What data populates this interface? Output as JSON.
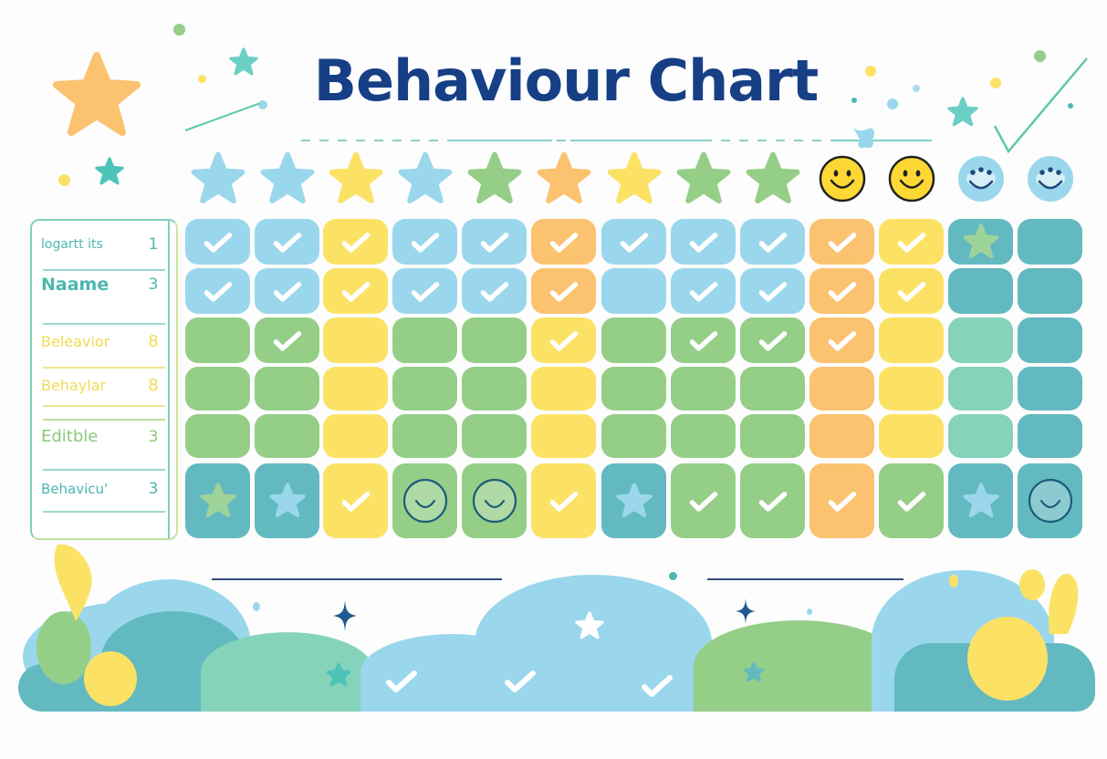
{
  "title": "Behaviour Chart",
  "colors": {
    "title": "#163F86",
    "blue": "#9AD7EC",
    "yellow": "#FBE265",
    "green": "#95CE87",
    "orange": "#FBC26F",
    "teal_dark": "#63B9C0",
    "teal_light": "#86D3BC",
    "smiley_yellow": "#FDD835"
  },
  "sidebar": {
    "rows": [
      {
        "label": "logartt its",
        "value": "1",
        "color": "#4BB7B0"
      },
      {
        "label": "Naame",
        "value": "3",
        "color": "#4BB7B0"
      },
      {
        "label": "Beleavior",
        "value": "8",
        "color": "#F1DC55"
      },
      {
        "label": "Behaylar",
        "value": "8",
        "color": "#F1DC55"
      },
      {
        "label": "Editble",
        "value": "3",
        "color": "#8CC97A"
      },
      {
        "label": "Behavicu'",
        "value": "3",
        "color": "#4BB7B0"
      }
    ]
  },
  "header_icons": [
    {
      "type": "star",
      "color": "blue"
    },
    {
      "type": "star",
      "color": "blue"
    },
    {
      "type": "star",
      "color": "yellow"
    },
    {
      "type": "star",
      "color": "blue"
    },
    {
      "type": "star",
      "color": "green"
    },
    {
      "type": "star",
      "color": "orange"
    },
    {
      "type": "star",
      "color": "yellow"
    },
    {
      "type": "star",
      "color": "green"
    },
    {
      "type": "star",
      "color": "green"
    },
    {
      "type": "smiley",
      "color": "smiley_yellow"
    },
    {
      "type": "smiley",
      "color": "smiley_yellow"
    },
    {
      "type": "smiley-blue",
      "color": "blue"
    },
    {
      "type": "smiley-blue",
      "color": "blue"
    }
  ],
  "grid": {
    "columns": 13,
    "rows": [
      [
        [
          "blue",
          "check"
        ],
        [
          "blue",
          "check"
        ],
        [
          "yellow",
          "check"
        ],
        [
          "blue",
          "check"
        ],
        [
          "blue",
          "check"
        ],
        [
          "orange",
          "check"
        ],
        [
          "blue",
          "check"
        ],
        [
          "blue",
          "check"
        ],
        [
          "blue",
          "check"
        ],
        [
          "orange",
          "check"
        ],
        [
          "yellow",
          "check"
        ],
        [
          "teal_dark",
          "star-green"
        ],
        [
          "teal_dark",
          ""
        ]
      ],
      [
        [
          "blue",
          "check"
        ],
        [
          "blue",
          "check"
        ],
        [
          "yellow",
          "check"
        ],
        [
          "blue",
          "check"
        ],
        [
          "blue",
          "check"
        ],
        [
          "orange",
          "check"
        ],
        [
          "blue",
          ""
        ],
        [
          "blue",
          "check"
        ],
        [
          "blue",
          "check"
        ],
        [
          "orange",
          "check"
        ],
        [
          "yellow",
          "check"
        ],
        [
          "teal_dark",
          ""
        ],
        [
          "teal_dark",
          ""
        ]
      ],
      [
        [
          "green",
          ""
        ],
        [
          "green",
          "check"
        ],
        [
          "yellow",
          ""
        ],
        [
          "green",
          ""
        ],
        [
          "green",
          ""
        ],
        [
          "yellow",
          "check"
        ],
        [
          "green",
          ""
        ],
        [
          "green",
          "check"
        ],
        [
          "green",
          "check"
        ],
        [
          "orange",
          "check"
        ],
        [
          "yellow",
          ""
        ],
        [
          "teal_light",
          ""
        ],
        [
          "teal_dark",
          ""
        ]
      ],
      [
        [
          "green",
          ""
        ],
        [
          "green",
          ""
        ],
        [
          "yellow",
          ""
        ],
        [
          "green",
          ""
        ],
        [
          "green",
          ""
        ],
        [
          "yellow",
          ""
        ],
        [
          "green",
          ""
        ],
        [
          "green",
          ""
        ],
        [
          "green",
          ""
        ],
        [
          "orange",
          ""
        ],
        [
          "yellow",
          ""
        ],
        [
          "teal_light",
          ""
        ],
        [
          "teal_dark",
          ""
        ]
      ],
      [
        [
          "green",
          ""
        ],
        [
          "green",
          ""
        ],
        [
          "yellow",
          ""
        ],
        [
          "green",
          ""
        ],
        [
          "green",
          ""
        ],
        [
          "yellow",
          ""
        ],
        [
          "green",
          ""
        ],
        [
          "green",
          ""
        ],
        [
          "green",
          ""
        ],
        [
          "orange",
          ""
        ],
        [
          "yellow",
          ""
        ],
        [
          "teal_light",
          ""
        ],
        [
          "teal_dark",
          ""
        ]
      ],
      [
        [
          "teal_dark",
          "star-green"
        ],
        [
          "teal_dark",
          "star-blue"
        ],
        [
          "yellow",
          "check"
        ],
        [
          "green",
          "smile"
        ],
        [
          "green",
          "smile"
        ],
        [
          "yellow",
          "check"
        ],
        [
          "teal_dark",
          "star-blue"
        ],
        [
          "green",
          "check"
        ],
        [
          "green",
          "check"
        ],
        [
          "orange",
          "check"
        ],
        [
          "green",
          "check"
        ],
        [
          "teal_dark",
          "star-blue"
        ],
        [
          "teal_dark",
          "smile"
        ]
      ]
    ]
  }
}
